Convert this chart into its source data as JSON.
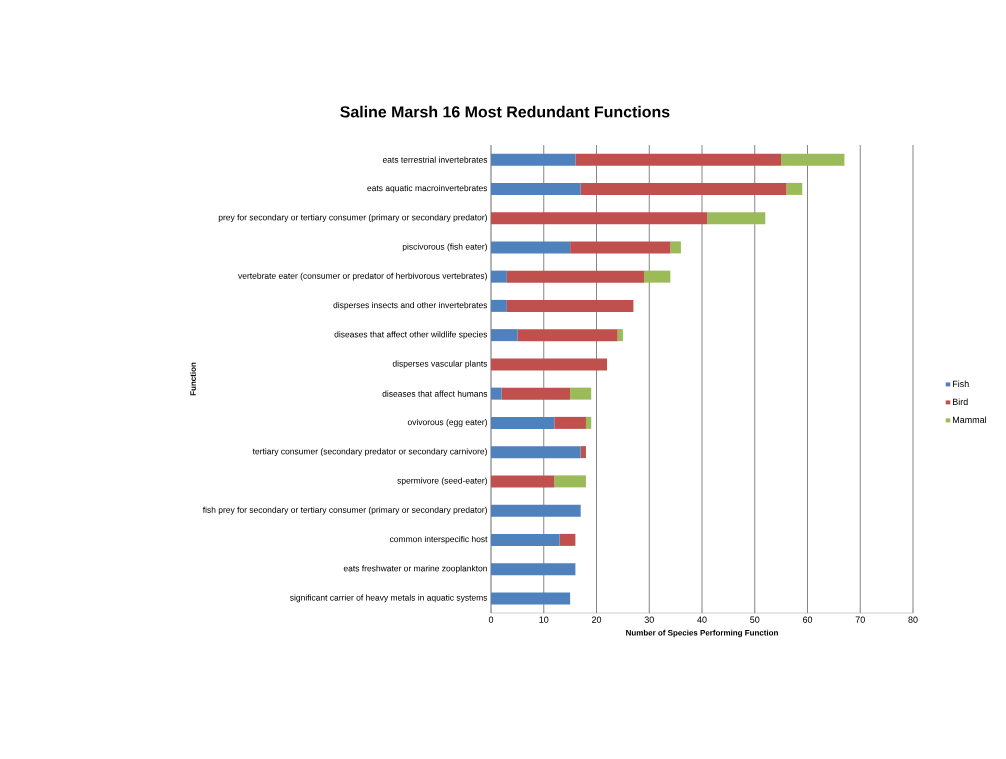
{
  "chart_data": {
    "type": "bar",
    "orientation": "horizontal",
    "stacked": true,
    "title": "Saline Marsh 16 Most Redundant Functions",
    "xlabel": "Number of Species Performing Function",
    "ylabel": "Function",
    "categories": [
      "eats terrestrial invertebrates",
      "eats aquatic macroinvertebrates",
      "prey for secondary or tertiary consumer (primary or secondary predator)",
      "piscivorous (fish eater)",
      "vertebrate eater (consumer or predator of herbivorous vertebrates)",
      "disperses insects and other invertebrates",
      "diseases that affect other wildlife species",
      "disperses vascular plants",
      "diseases that affect humans",
      "ovivorous (egg eater)",
      "tertiary consumer (secondary predator or secondary carnivore)",
      "spermivore (seed-eater)",
      "fish prey for secondary or tertiary consumer (primary or secondary predator)",
      "common interspecific host",
      "eats freshwater or marine zooplankton",
      "significant carrier of heavy metals in aquatic systems"
    ],
    "series": [
      {
        "name": "Fish",
        "color": "#4f81bd",
        "values": [
          16,
          17,
          0,
          15,
          3,
          3,
          5,
          0,
          2,
          12,
          17,
          0,
          17,
          13,
          16,
          15
        ]
      },
      {
        "name": "Bird",
        "color": "#c0504d",
        "values": [
          39,
          39,
          41,
          19,
          26,
          24,
          19,
          22,
          13,
          6,
          1,
          12,
          0,
          3,
          0,
          0
        ]
      },
      {
        "name": "Mammal",
        "color": "#9bbb59",
        "values": [
          12,
          3,
          11,
          2,
          5,
          0,
          1,
          0,
          4,
          1,
          0,
          6,
          0,
          0,
          0,
          0
        ]
      }
    ],
    "xlim": [
      0,
      80
    ],
    "xticks": [
      0,
      10,
      20,
      30,
      40,
      50,
      60,
      70,
      80
    ],
    "grid": "x",
    "legend": "right"
  }
}
